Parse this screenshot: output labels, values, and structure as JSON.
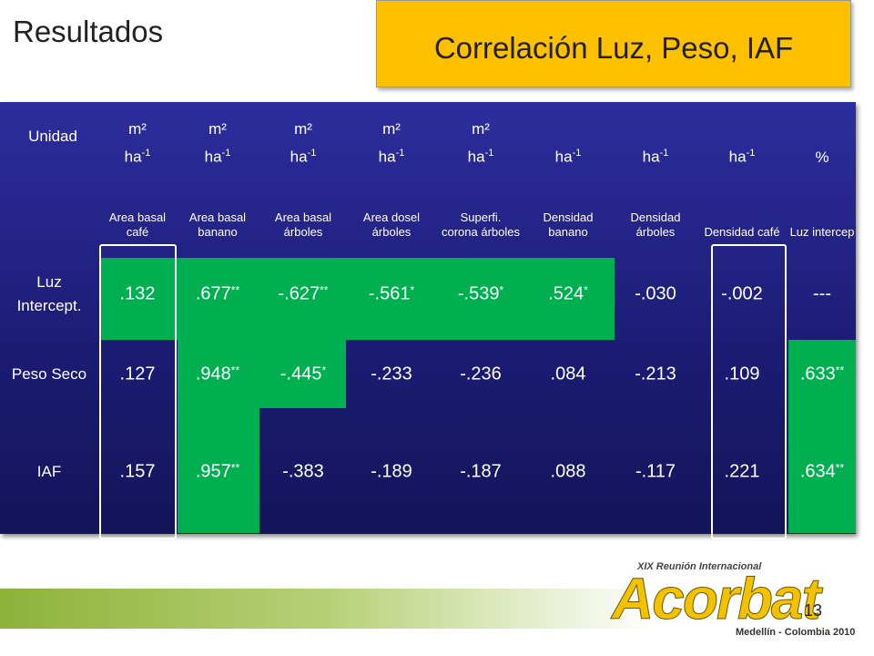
{
  "header": {
    "title": "Resultados",
    "box_title": "Correlación Luz, Peso, IAF"
  },
  "table": {
    "unit_label": "Unidad",
    "units": [
      {
        "main": "m²",
        "sub": "ha",
        "exp": "-1"
      },
      {
        "main": "m²",
        "sub": "ha",
        "exp": "-1"
      },
      {
        "main": "m²",
        "sub": "ha",
        "exp": "-1"
      },
      {
        "main": "m²",
        "sub": "ha",
        "exp": "-1"
      },
      {
        "main": "m²",
        "sub": "ha",
        "exp": "-1"
      },
      {
        "sub": "ha",
        "exp": "-1"
      },
      {
        "sub": "ha",
        "exp": "-1"
      },
      {
        "sub": "ha",
        "exp": "-1"
      },
      {
        "main": "%"
      }
    ],
    "variables": [
      "Area basal café",
      "Area basal banano",
      "Area basal árboles",
      "Area dosel árboles",
      "Superfi. corona árboles",
      "Densidad banano",
      "Densidad árboles",
      "Densidad café",
      "Luz intercep"
    ],
    "rows": [
      {
        "label": "Luz Intercept.",
        "cells": [
          {
            "value": ".132"
          },
          {
            "value": ".677",
            "sig": "**"
          },
          {
            "value": "-.627",
            "sig": "**"
          },
          {
            "value": "-.561",
            "sig": "*"
          },
          {
            "value": "-.539",
            "sig": "*"
          },
          {
            "value": ".524",
            "sig": "*"
          },
          {
            "value": "-.030"
          },
          {
            "value": "-.002"
          },
          {
            "value": "---"
          }
        ]
      },
      {
        "label": "Peso Seco",
        "cells": [
          {
            "value": ".127"
          },
          {
            "value": ".948",
            "sig": "**"
          },
          {
            "value": "-.445",
            "sig": "*"
          },
          {
            "value": "-.233"
          },
          {
            "value": "-.236"
          },
          {
            "value": ".084"
          },
          {
            "value": "-.213"
          },
          {
            "value": ".109"
          },
          {
            "value": ".633",
            "sig": "**"
          }
        ]
      },
      {
        "label": "IAF",
        "cells": [
          {
            "value": ".157"
          },
          {
            "value": ".957",
            "sig": "**"
          },
          {
            "value": "-.383"
          },
          {
            "value": "-.189"
          },
          {
            "value": "-.187"
          },
          {
            "value": ".088"
          },
          {
            "value": "-.117"
          },
          {
            "value": ".221"
          },
          {
            "value": ".634",
            "sig": "**"
          }
        ]
      }
    ]
  },
  "footer": {
    "page": "13",
    "logo": {
      "event": "XIX Reunión Internacional",
      "name": "Acorbat",
      "place": "Medellín - Colombia 2010"
    }
  }
}
